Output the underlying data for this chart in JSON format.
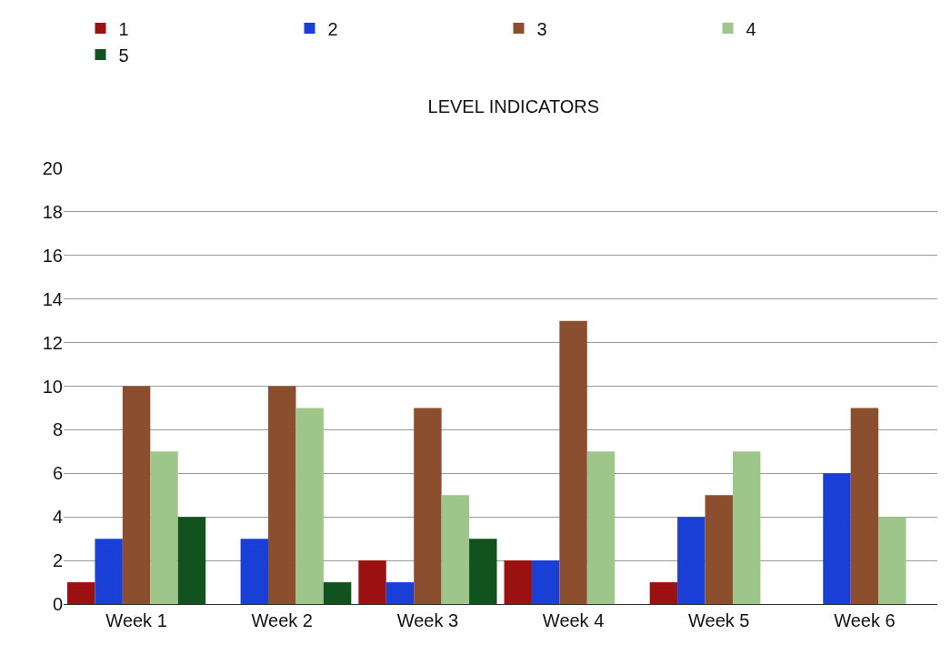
{
  "chart_data": {
    "type": "bar",
    "title": "LEVEL INDICATORS",
    "categories": [
      "Week 1",
      "Week 2",
      "Week 3",
      "Week 4",
      "Week 5",
      "Week 6"
    ],
    "series": [
      {
        "name": "1",
        "color": "#9b1010",
        "values": [
          1,
          0,
          2,
          2,
          1,
          0
        ]
      },
      {
        "name": "2",
        "color": "#1a3fd6",
        "values": [
          3,
          3,
          1,
          2,
          4,
          6
        ]
      },
      {
        "name": "3",
        "color": "#8b4e2e",
        "values": [
          10,
          10,
          9,
          13,
          5,
          9
        ]
      },
      {
        "name": "4",
        "color": "#9fc68a",
        "values": [
          7,
          9,
          5,
          7,
          7,
          4
        ]
      },
      {
        "name": "5",
        "color": "#12521e",
        "values": [
          4,
          1,
          3,
          0,
          0,
          0
        ]
      }
    ],
    "ylim": [
      0,
      20
    ],
    "yticks": [
      0,
      2,
      4,
      6,
      8,
      10,
      12,
      14,
      16,
      18,
      20
    ],
    "grid": "y",
    "legend": "top"
  }
}
